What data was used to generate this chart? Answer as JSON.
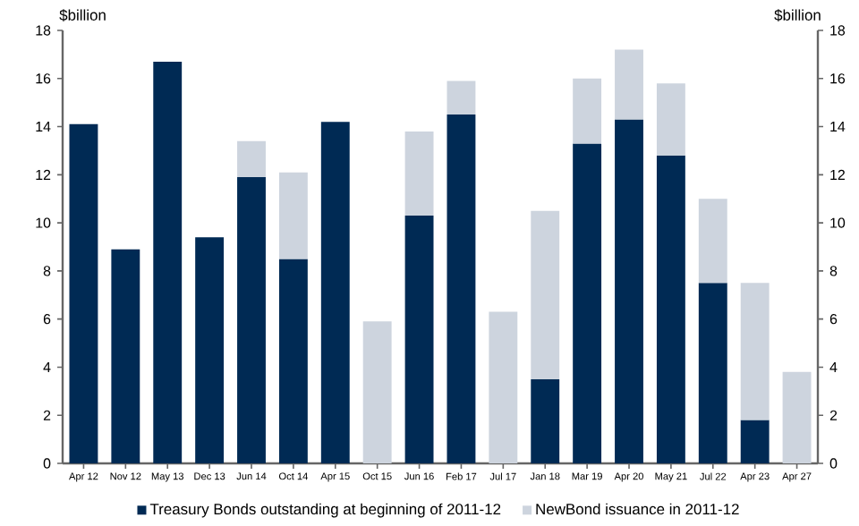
{
  "chart_data": {
    "type": "bar",
    "stacked": true,
    "categories": [
      "Apr 12",
      "Nov 12",
      "May 13",
      "Dec 13",
      "Jun 14",
      "Oct 14",
      "Apr 15",
      "Oct 15",
      "Jun 16",
      "Feb 17",
      "Jul 17",
      "Jan 18",
      "Mar 19",
      "Apr 20",
      "May 21",
      "Jul 22",
      "Apr 23",
      "Apr 27"
    ],
    "series": [
      {
        "name": "Treasury Bonds outstanding at beginning of 2011-12",
        "color": "#002a54",
        "values": [
          14.1,
          8.9,
          16.7,
          9.4,
          11.9,
          8.5,
          14.2,
          null,
          10.3,
          14.5,
          null,
          3.5,
          13.3,
          14.3,
          12.8,
          7.5,
          1.8,
          null
        ]
      },
      {
        "name": "NewBond issuance in 2011-12",
        "color": "#cdd4de",
        "values": [
          null,
          null,
          null,
          null,
          1.5,
          3.6,
          null,
          5.9,
          3.5,
          1.4,
          6.3,
          7.0,
          2.7,
          2.9,
          3.0,
          3.5,
          5.7,
          3.8
        ]
      }
    ],
    "ylabel": "$billion",
    "y2label": "$billion",
    "ylim": [
      0,
      18
    ],
    "yticks": [
      0,
      2,
      4,
      6,
      8,
      10,
      12,
      14,
      16,
      18
    ],
    "y2lim": [
      0,
      18
    ],
    "y2ticks": [
      0,
      2,
      4,
      6,
      8,
      10,
      12,
      14,
      16,
      18
    ],
    "legend": "bottom",
    "grid": false
  }
}
